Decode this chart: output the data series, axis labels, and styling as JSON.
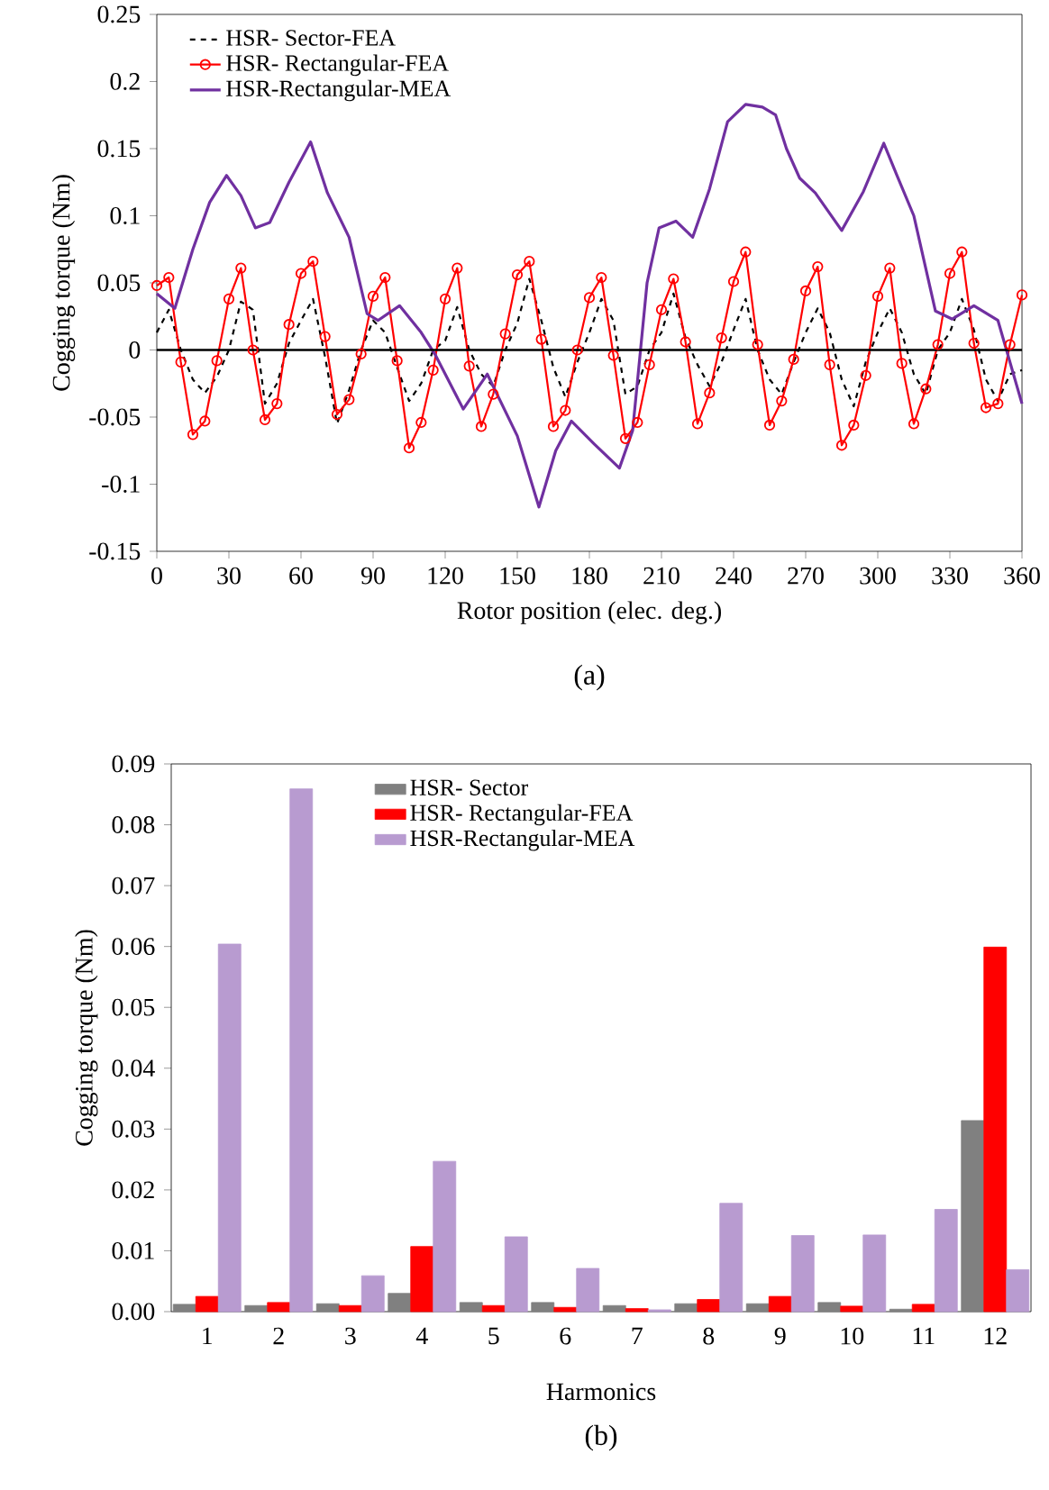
{
  "chart_data": [
    {
      "type": "line",
      "xlabel": "Rotor position (elec. deg.)",
      "ylabel": "Cogging torque (Nm)",
      "x": [
        0,
        5,
        10,
        15,
        20,
        25,
        30,
        35,
        40,
        45,
        50,
        55,
        60,
        65,
        70,
        75,
        80,
        85,
        90,
        95,
        100,
        105,
        110,
        115,
        120,
        125,
        130,
        135,
        140,
        145,
        150,
        155,
        160,
        165,
        170,
        175,
        180,
        185,
        190,
        195,
        200,
        205,
        210,
        215,
        220,
        225,
        230,
        235,
        240,
        245,
        250,
        255,
        260,
        265,
        270,
        275,
        280,
        285,
        290,
        295,
        300,
        305,
        310,
        315,
        320,
        325,
        330,
        335,
        340,
        345,
        350,
        355,
        360
      ],
      "series": [
        {
          "name": "HSR- Sector-FEA",
          "color": "#000000",
          "line_style": "dashed",
          "marker": "none",
          "values": [
            0.013,
            0.03,
            0.0,
            -0.022,
            -0.032,
            -0.02,
            0.0,
            0.036,
            0.03,
            -0.04,
            -0.025,
            0.005,
            0.022,
            0.038,
            -0.005,
            -0.055,
            -0.03,
            0.0,
            0.022,
            0.013,
            -0.013,
            -0.038,
            -0.025,
            0.0,
            0.007,
            0.032,
            0.0,
            -0.018,
            -0.027,
            0.0,
            0.02,
            0.053,
            0.022,
            -0.013,
            -0.035,
            -0.009,
            0.013,
            0.038,
            0.022,
            -0.033,
            -0.027,
            0.0,
            0.013,
            0.042,
            0.009,
            -0.011,
            -0.027,
            -0.009,
            0.015,
            0.038,
            0.0,
            -0.022,
            -0.033,
            -0.009,
            0.013,
            0.031,
            0.013,
            -0.022,
            -0.042,
            -0.009,
            0.013,
            0.031,
            0.013,
            -0.018,
            -0.033,
            0.0,
            0.013,
            0.038,
            0.015,
            -0.022,
            -0.038,
            -0.018,
            -0.015
          ]
        },
        {
          "name": "HSR- Rectangular-FEA",
          "color": "#ff0000",
          "line_style": "solid",
          "marker": "circle",
          "values": [
            0.048,
            0.054,
            -0.009,
            -0.063,
            -0.053,
            -0.008,
            0.038,
            0.061,
            0.0,
            -0.052,
            -0.04,
            0.019,
            0.057,
            0.066,
            0.01,
            -0.048,
            -0.037,
            -0.003,
            0.04,
            0.054,
            -0.008,
            -0.073,
            -0.054,
            -0.015,
            0.038,
            0.061,
            -0.012,
            -0.057,
            -0.033,
            0.012,
            0.056,
            0.066,
            0.008,
            -0.057,
            -0.045,
            0.0,
            0.039,
            0.054,
            -0.004,
            -0.066,
            -0.054,
            -0.011,
            0.03,
            0.053,
            0.006,
            -0.055,
            -0.032,
            0.009,
            0.051,
            0.073,
            0.004,
            -0.056,
            -0.038,
            -0.007,
            0.044,
            0.062,
            -0.011,
            -0.071,
            -0.056,
            -0.019,
            0.04,
            0.061,
            -0.01,
            -0.055,
            -0.029,
            0.004,
            0.057,
            0.073,
            0.005,
            -0.043,
            -0.04,
            0.004,
            0.041
          ]
        },
        {
          "name": "HSR-Rectangular-MEA",
          "color": "#7030a0",
          "line_style": "solid",
          "marker": "none",
          "x": [
            0,
            7.5,
            15,
            22,
            29,
            35,
            41,
            47,
            55,
            64,
            71,
            80,
            87.5,
            92,
            101,
            110,
            116,
            127.5,
            137.5,
            150,
            159,
            166,
            172.5,
            182,
            192.5,
            198,
            204,
            209,
            216,
            223,
            230,
            237.5,
            245,
            252,
            257.5,
            262,
            267.5,
            274,
            285,
            294,
            302.5,
            308,
            315,
            324,
            331,
            340,
            350,
            360
          ],
          "values": [
            0.042,
            0.031,
            0.075,
            0.11,
            0.13,
            0.115,
            0.091,
            0.095,
            0.125,
            0.155,
            0.117,
            0.084,
            0.027,
            0.022,
            0.033,
            0.013,
            -0.004,
            -0.044,
            -0.018,
            -0.064,
            -0.117,
            -0.075,
            -0.053,
            -0.07,
            -0.088,
            -0.06,
            0.05,
            0.091,
            0.096,
            0.084,
            0.12,
            0.17,
            0.183,
            0.181,
            0.175,
            0.15,
            0.128,
            0.117,
            0.089,
            0.118,
            0.154,
            0.13,
            0.1,
            0.029,
            0.023,
            0.033,
            0.022,
            -0.04
          ]
        }
      ],
      "xlim": [
        0,
        360
      ],
      "xticks": [
        0,
        30,
        60,
        90,
        120,
        150,
        180,
        210,
        240,
        270,
        300,
        330,
        360
      ],
      "ylim": [
        -0.15,
        0.25
      ],
      "yticks": [
        -0.15,
        -0.1,
        -0.05,
        0,
        0.05,
        0.1,
        0.15,
        0.2,
        0.25
      ],
      "ref_lines": [
        {
          "axis": "y",
          "value": 0,
          "color": "#000000"
        }
      ],
      "legend": "top left",
      "annotations": [
        "(a)"
      ]
    },
    {
      "type": "bar",
      "xlabel": "Harmonics",
      "ylabel": "Cogging  torque (Nm)",
      "categories": [
        "1",
        "2",
        "3",
        "4",
        "5",
        "6",
        "7",
        "8",
        "9",
        "10",
        "11",
        "12"
      ],
      "series": [
        {
          "name": "HSR- Sector",
          "color": "#808080",
          "values": [
            0.0012,
            0.001,
            0.0013,
            0.003,
            0.0015,
            0.0015,
            0.001,
            0.0013,
            0.0013,
            0.0015,
            0.0004,
            0.0314
          ]
        },
        {
          "name": "HSR- Rectangular-FEA",
          "color": "#ff0000",
          "values": [
            0.0025,
            0.0015,
            0.001,
            0.0107,
            0.001,
            0.0007,
            0.0005,
            0.002,
            0.0025,
            0.0009,
            0.0012,
            0.0599
          ]
        },
        {
          "name": "HSR-Rectangular-MEA",
          "color": "#b89bd0",
          "values": [
            0.0604,
            0.0859,
            0.0059,
            0.0247,
            0.0123,
            0.0071,
            0.0003,
            0.0178,
            0.0125,
            0.0126,
            0.0168,
            0.0069
          ]
        }
      ],
      "ylim": [
        0,
        0.09
      ],
      "yticks": [
        {
          "value": 0,
          "label": "0.00"
        },
        {
          "value": 0.01,
          "label": "0.01"
        },
        {
          "value": 0.02,
          "label": "0.02"
        },
        {
          "value": 0.03,
          "label": "0.03"
        },
        {
          "value": 0.04,
          "label": "0.04"
        },
        {
          "value": 0.05,
          "label": "0.05"
        },
        {
          "value": 0.06,
          "label": "0.06"
        },
        {
          "value": 0.07,
          "label": "0.07"
        },
        {
          "value": 0.08,
          "label": "0.08"
        },
        {
          "value": 0.09,
          "label": "0.09"
        }
      ],
      "legend": "top left",
      "annotations": [
        "(b)"
      ]
    }
  ]
}
